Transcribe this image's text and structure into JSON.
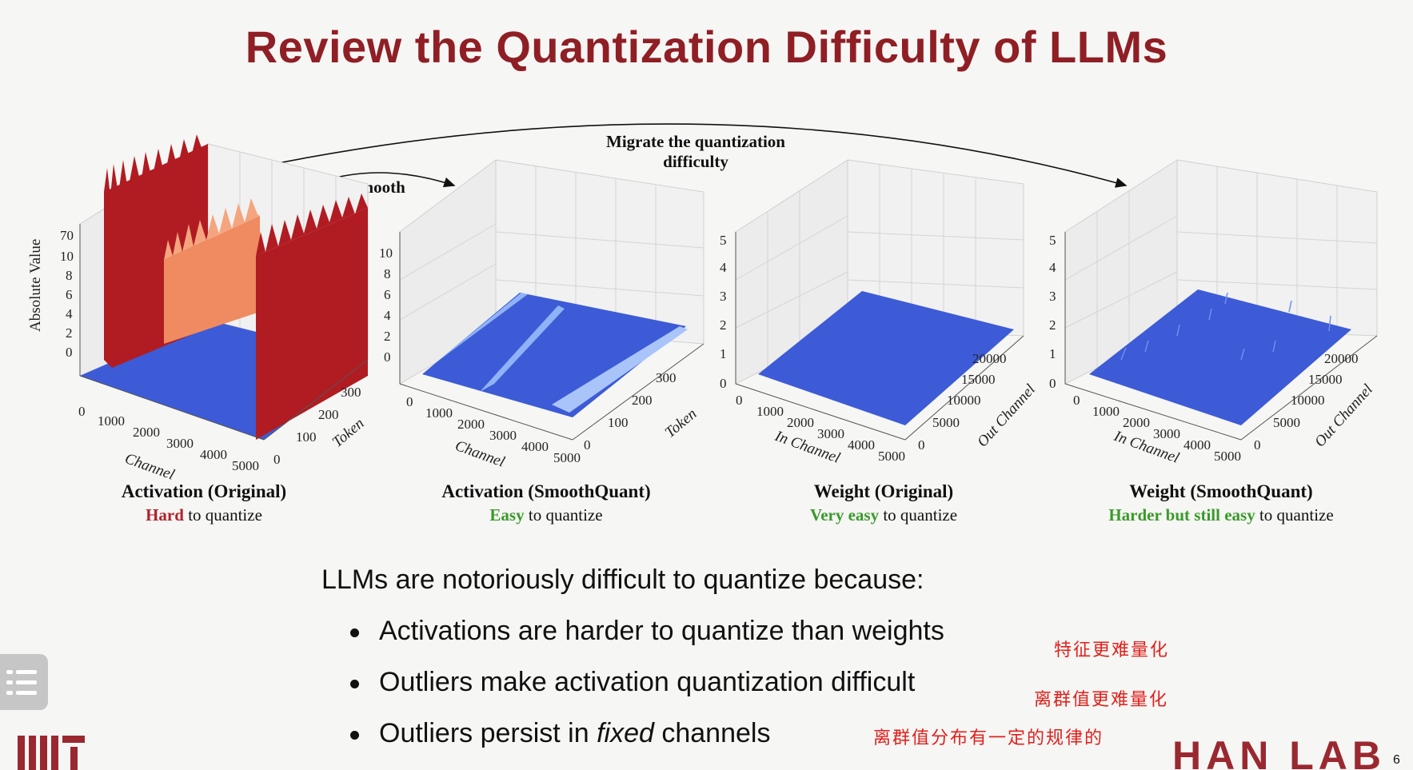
{
  "slide": {
    "title": "Review the Quantization Difficulty of LLMs",
    "page_number": "6"
  },
  "arrows": {
    "smooth_label": "Smooth",
    "migrate_label_line1": "Migrate the quantization",
    "migrate_label_line2": "difficulty"
  },
  "panels": [
    {
      "title": "Activation (Original)",
      "qualifier": "Hard",
      "suffix": " to quantize",
      "qualifier_color": "#b3212b",
      "z_label": "Absolute Value",
      "z_ticks": [
        "0",
        "2",
        "4",
        "6",
        "8",
        "10",
        "70"
      ],
      "x_label": "Channel",
      "x_ticks": [
        "0",
        "1000",
        "2000",
        "3000",
        "4000",
        "5000"
      ],
      "y_label": "Token",
      "y_ticks": [
        "0",
        "100",
        "200",
        "300"
      ]
    },
    {
      "title": "Activation (SmoothQuant)",
      "qualifier": "Easy",
      "suffix": " to quantize",
      "qualifier_color": "#3a9a2a",
      "z_ticks": [
        "0",
        "2",
        "4",
        "6",
        "8",
        "10"
      ],
      "x_label": "Channel",
      "x_ticks": [
        "0",
        "1000",
        "2000",
        "3000",
        "4000",
        "5000"
      ],
      "y_label": "Token",
      "y_ticks": [
        "0",
        "100",
        "200",
        "300"
      ]
    },
    {
      "title": "Weight (Original)",
      "qualifier": "Very easy",
      "suffix": " to quantize",
      "qualifier_color": "#3a9a2a",
      "z_ticks": [
        "0",
        "1",
        "2",
        "3",
        "4",
        "5"
      ],
      "x_label": "In Channel",
      "x_ticks": [
        "0",
        "1000",
        "2000",
        "3000",
        "4000",
        "5000"
      ],
      "y_label": "Out Channel",
      "y_ticks": [
        "0",
        "5000",
        "10000",
        "15000",
        "20000"
      ]
    },
    {
      "title": "Weight (SmoothQuant)",
      "qualifier": "Harder but still easy",
      "suffix": " to quantize",
      "qualifier_color": "#3a9a2a",
      "z_ticks": [
        "0",
        "1",
        "2",
        "3",
        "4",
        "5"
      ],
      "x_label": "In Channel",
      "x_ticks": [
        "0",
        "1000",
        "2000",
        "3000",
        "4000",
        "5000"
      ],
      "y_label": "Out Channel",
      "y_ticks": [
        "0",
        "5000",
        "10000",
        "15000",
        "20000"
      ]
    }
  ],
  "body": {
    "lead": "LLMs are notoriously difficult to quantize because:",
    "bullets": [
      {
        "text": "Activations are harder to quantize than weights"
      },
      {
        "text": "Outliers make activation quantization difficult"
      },
      {
        "pre": "Outliers persist in ",
        "em": "fixed",
        "post": " channels"
      }
    ]
  },
  "annotations": [
    "特征更难量化",
    "离群值更难量化",
    "离群值分布有一定的规律的"
  ],
  "logos": {
    "left": "MIT",
    "right": "HAN LAB"
  },
  "colors": {
    "title": "#8f1f25",
    "annotation": "#e0201c",
    "surface_blue": "#3d5bd6",
    "outlier_red": "#b01c22",
    "outlier_orange": "#f08a60"
  }
}
